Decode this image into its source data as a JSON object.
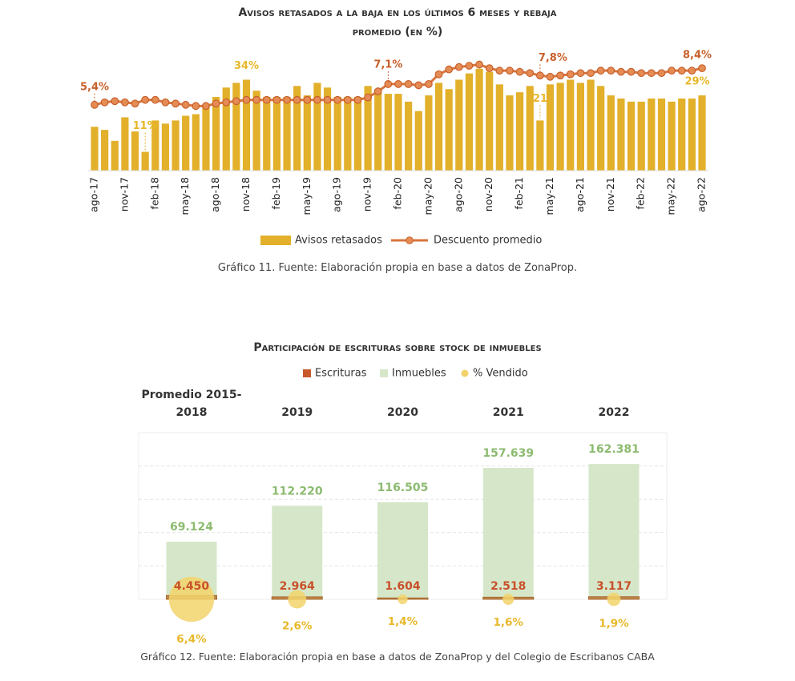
{
  "chart_data": [
    {
      "type": "combo",
      "title": "Avisos retasados a la baja en los últimos 6 meses y rebaja promedio (en %)",
      "caption": "Gráfico 11. Fuente: Elaboración propia en base a datos de ZonaProp.",
      "categories": [
        "ago-17",
        null,
        null,
        "nov-17",
        null,
        null,
        "feb-18",
        null,
        null,
        "may-18",
        null,
        null,
        "ago-18",
        null,
        null,
        "nov-18",
        null,
        null,
        "feb-19",
        null,
        null,
        "may-19",
        null,
        null,
        "ago-19",
        null,
        null,
        "nov-19",
        null,
        null,
        "feb-20",
        null,
        null,
        "may-20",
        null,
        null,
        "ago-20",
        null,
        null,
        "nov-20",
        null,
        null,
        "feb-21",
        null,
        null,
        "may-21",
        null,
        null,
        "ago-21",
        null,
        null,
        "nov-21",
        null,
        null,
        "feb-22",
        null,
        null,
        "may-22",
        null,
        null,
        "ago-22"
      ],
      "ylim": [
        5,
        40
      ],
      "y2lim": [
        0,
        9
      ],
      "series": [
        {
          "name": "Avisos retasados",
          "type": "bar",
          "color": "#e2b02a",
          "values": [
            19,
            18,
            14.5,
            22,
            17.5,
            11,
            21,
            20,
            21,
            22.5,
            23,
            26,
            28.5,
            31.5,
            33,
            34,
            30.5,
            28.5,
            28.5,
            28.5,
            32,
            29,
            33,
            31.5,
            28.5,
            28.5,
            28.5,
            32,
            31,
            29.5,
            29.5,
            27,
            24,
            29,
            33,
            31,
            34,
            36,
            37.5,
            36.5,
            32.5,
            29,
            30,
            32,
            21,
            32.5,
            33,
            34,
            33,
            34,
            32,
            29,
            28,
            27,
            27,
            28,
            28,
            27,
            28,
            28,
            29
          ],
          "value_labels": [
            null,
            null,
            null,
            null,
            null,
            "11%",
            null,
            null,
            null,
            null,
            null,
            null,
            null,
            null,
            null,
            "34%",
            null,
            null,
            null,
            null,
            null,
            null,
            null,
            null,
            null,
            null,
            null,
            null,
            null,
            null,
            null,
            null,
            null,
            null,
            null,
            null,
            null,
            null,
            null,
            null,
            null,
            null,
            null,
            null,
            "21",
            null,
            null,
            null,
            null,
            null,
            null,
            null,
            null,
            null,
            null,
            null,
            null,
            null,
            null,
            null,
            "29%"
          ]
        },
        {
          "name": "Descuento promedio",
          "type": "line",
          "axis": "y2",
          "color": "#d9763e",
          "values": [
            5.4,
            5.6,
            5.7,
            5.6,
            5.5,
            5.8,
            5.8,
            5.6,
            5.5,
            5.4,
            5.3,
            5.3,
            5.5,
            5.6,
            5.7,
            5.8,
            5.8,
            5.8,
            5.8,
            5.8,
            5.8,
            5.8,
            5.8,
            5.8,
            5.8,
            5.8,
            5.8,
            6.0,
            6.5,
            7.1,
            7.1,
            7.1,
            7.0,
            7.1,
            7.9,
            8.3,
            8.5,
            8.6,
            8.7,
            8.4,
            8.2,
            8.2,
            8.1,
            8.0,
            7.8,
            7.7,
            7.8,
            7.9,
            8.0,
            8.0,
            8.2,
            8.2,
            8.1,
            8.1,
            8.0,
            8.0,
            8.0,
            8.2,
            8.2,
            8.2,
            8.4
          ],
          "value_labels": [
            "5,4%",
            null,
            null,
            null,
            null,
            null,
            null,
            null,
            null,
            null,
            null,
            null,
            null,
            null,
            null,
            null,
            null,
            null,
            null,
            null,
            null,
            null,
            null,
            null,
            null,
            null,
            null,
            null,
            null,
            "7,1%",
            null,
            null,
            null,
            null,
            null,
            null,
            null,
            null,
            null,
            null,
            null,
            null,
            null,
            null,
            "7,8%",
            null,
            null,
            null,
            null,
            null,
            null,
            null,
            null,
            null,
            null,
            null,
            null,
            null,
            null,
            null,
            "8,4%"
          ]
        }
      ]
    },
    {
      "type": "column",
      "title": "Participación de escrituras sobre stock de inmuebles",
      "caption": "Gráfico 12. Fuente: Elaboración propia en base a datos de ZonaProp y del Colegio de Escribanos CABA",
      "categories": [
        "Promedio 2015-2018",
        "2019",
        "2020",
        "2021",
        "2022"
      ],
      "ylim": [
        0,
        200000
      ],
      "gridlines": [
        40000,
        80000,
        120000,
        160000
      ],
      "series": [
        {
          "name": "Escrituras",
          "color": "#c8572a",
          "values": [
            4450,
            2964,
            1604,
            2518,
            3117
          ],
          "value_labels": [
            "4.450",
            "2.964",
            "1.604",
            "2.518",
            "3.117"
          ]
        },
        {
          "name": "Inmuebles",
          "color": "#d6e7c9",
          "values": [
            69124,
            112220,
            116505,
            157639,
            162381
          ],
          "value_labels": [
            "69.124",
            "112.220",
            "116.505",
            "157.639",
            "162.381"
          ]
        },
        {
          "name": "% Vendido",
          "color": "#f2d36b",
          "values": [
            6.4,
            2.6,
            1.4,
            1.6,
            1.9
          ],
          "value_labels": [
            "6,4%",
            "2,6%",
            "1,4%",
            "1,6%",
            "1,9%"
          ]
        }
      ]
    }
  ]
}
